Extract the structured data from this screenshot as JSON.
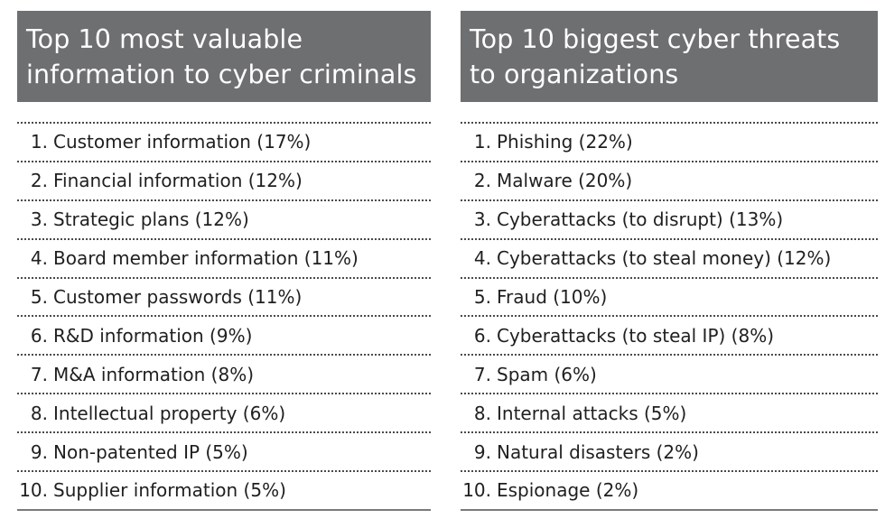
{
  "left": {
    "title_line1": "Top 10 most valuable",
    "title_line2": "information to cyber criminals",
    "items": [
      {
        "rank": "1.",
        "text": "Customer information (17%)"
      },
      {
        "rank": "2.",
        "text": "Financial information (12%)"
      },
      {
        "rank": "3.",
        "text": "Strategic plans (12%)"
      },
      {
        "rank": "4.",
        "text": "Board member information (11%)"
      },
      {
        "rank": "5.",
        "text": "Customer passwords (11%)"
      },
      {
        "rank": "6.",
        "text": "R&D information (9%)"
      },
      {
        "rank": "7.",
        "text": "M&A information (8%)"
      },
      {
        "rank": "8.",
        "text": "Intellectual property (6%)"
      },
      {
        "rank": "9.",
        "text": "Non-patented IP (5%)"
      },
      {
        "rank": "10.",
        "text": "Supplier information (5%)"
      }
    ]
  },
  "right": {
    "title_line1": "Top 10 biggest cyber threats",
    "title_line2": "to organizations",
    "items": [
      {
        "rank": "1.",
        "text": "Phishing (22%)"
      },
      {
        "rank": "2.",
        "text": "Malware (20%)"
      },
      {
        "rank": "3.",
        "text": "Cyberattacks (to disrupt) (13%)"
      },
      {
        "rank": "4.",
        "text": "Cyberattacks (to steal money) (12%)"
      },
      {
        "rank": "5.",
        "text": "Fraud (10%)"
      },
      {
        "rank": "6.",
        "text": "Cyberattacks (to steal IP) (8%)"
      },
      {
        "rank": "7.",
        "text": "Spam (6%)"
      },
      {
        "rank": "8.",
        "text": "Internal attacks (5%)"
      },
      {
        "rank": "9.",
        "text": "Natural disasters (2%)"
      },
      {
        "rank": "10.",
        "text": "Espionage (2%)"
      }
    ]
  }
}
